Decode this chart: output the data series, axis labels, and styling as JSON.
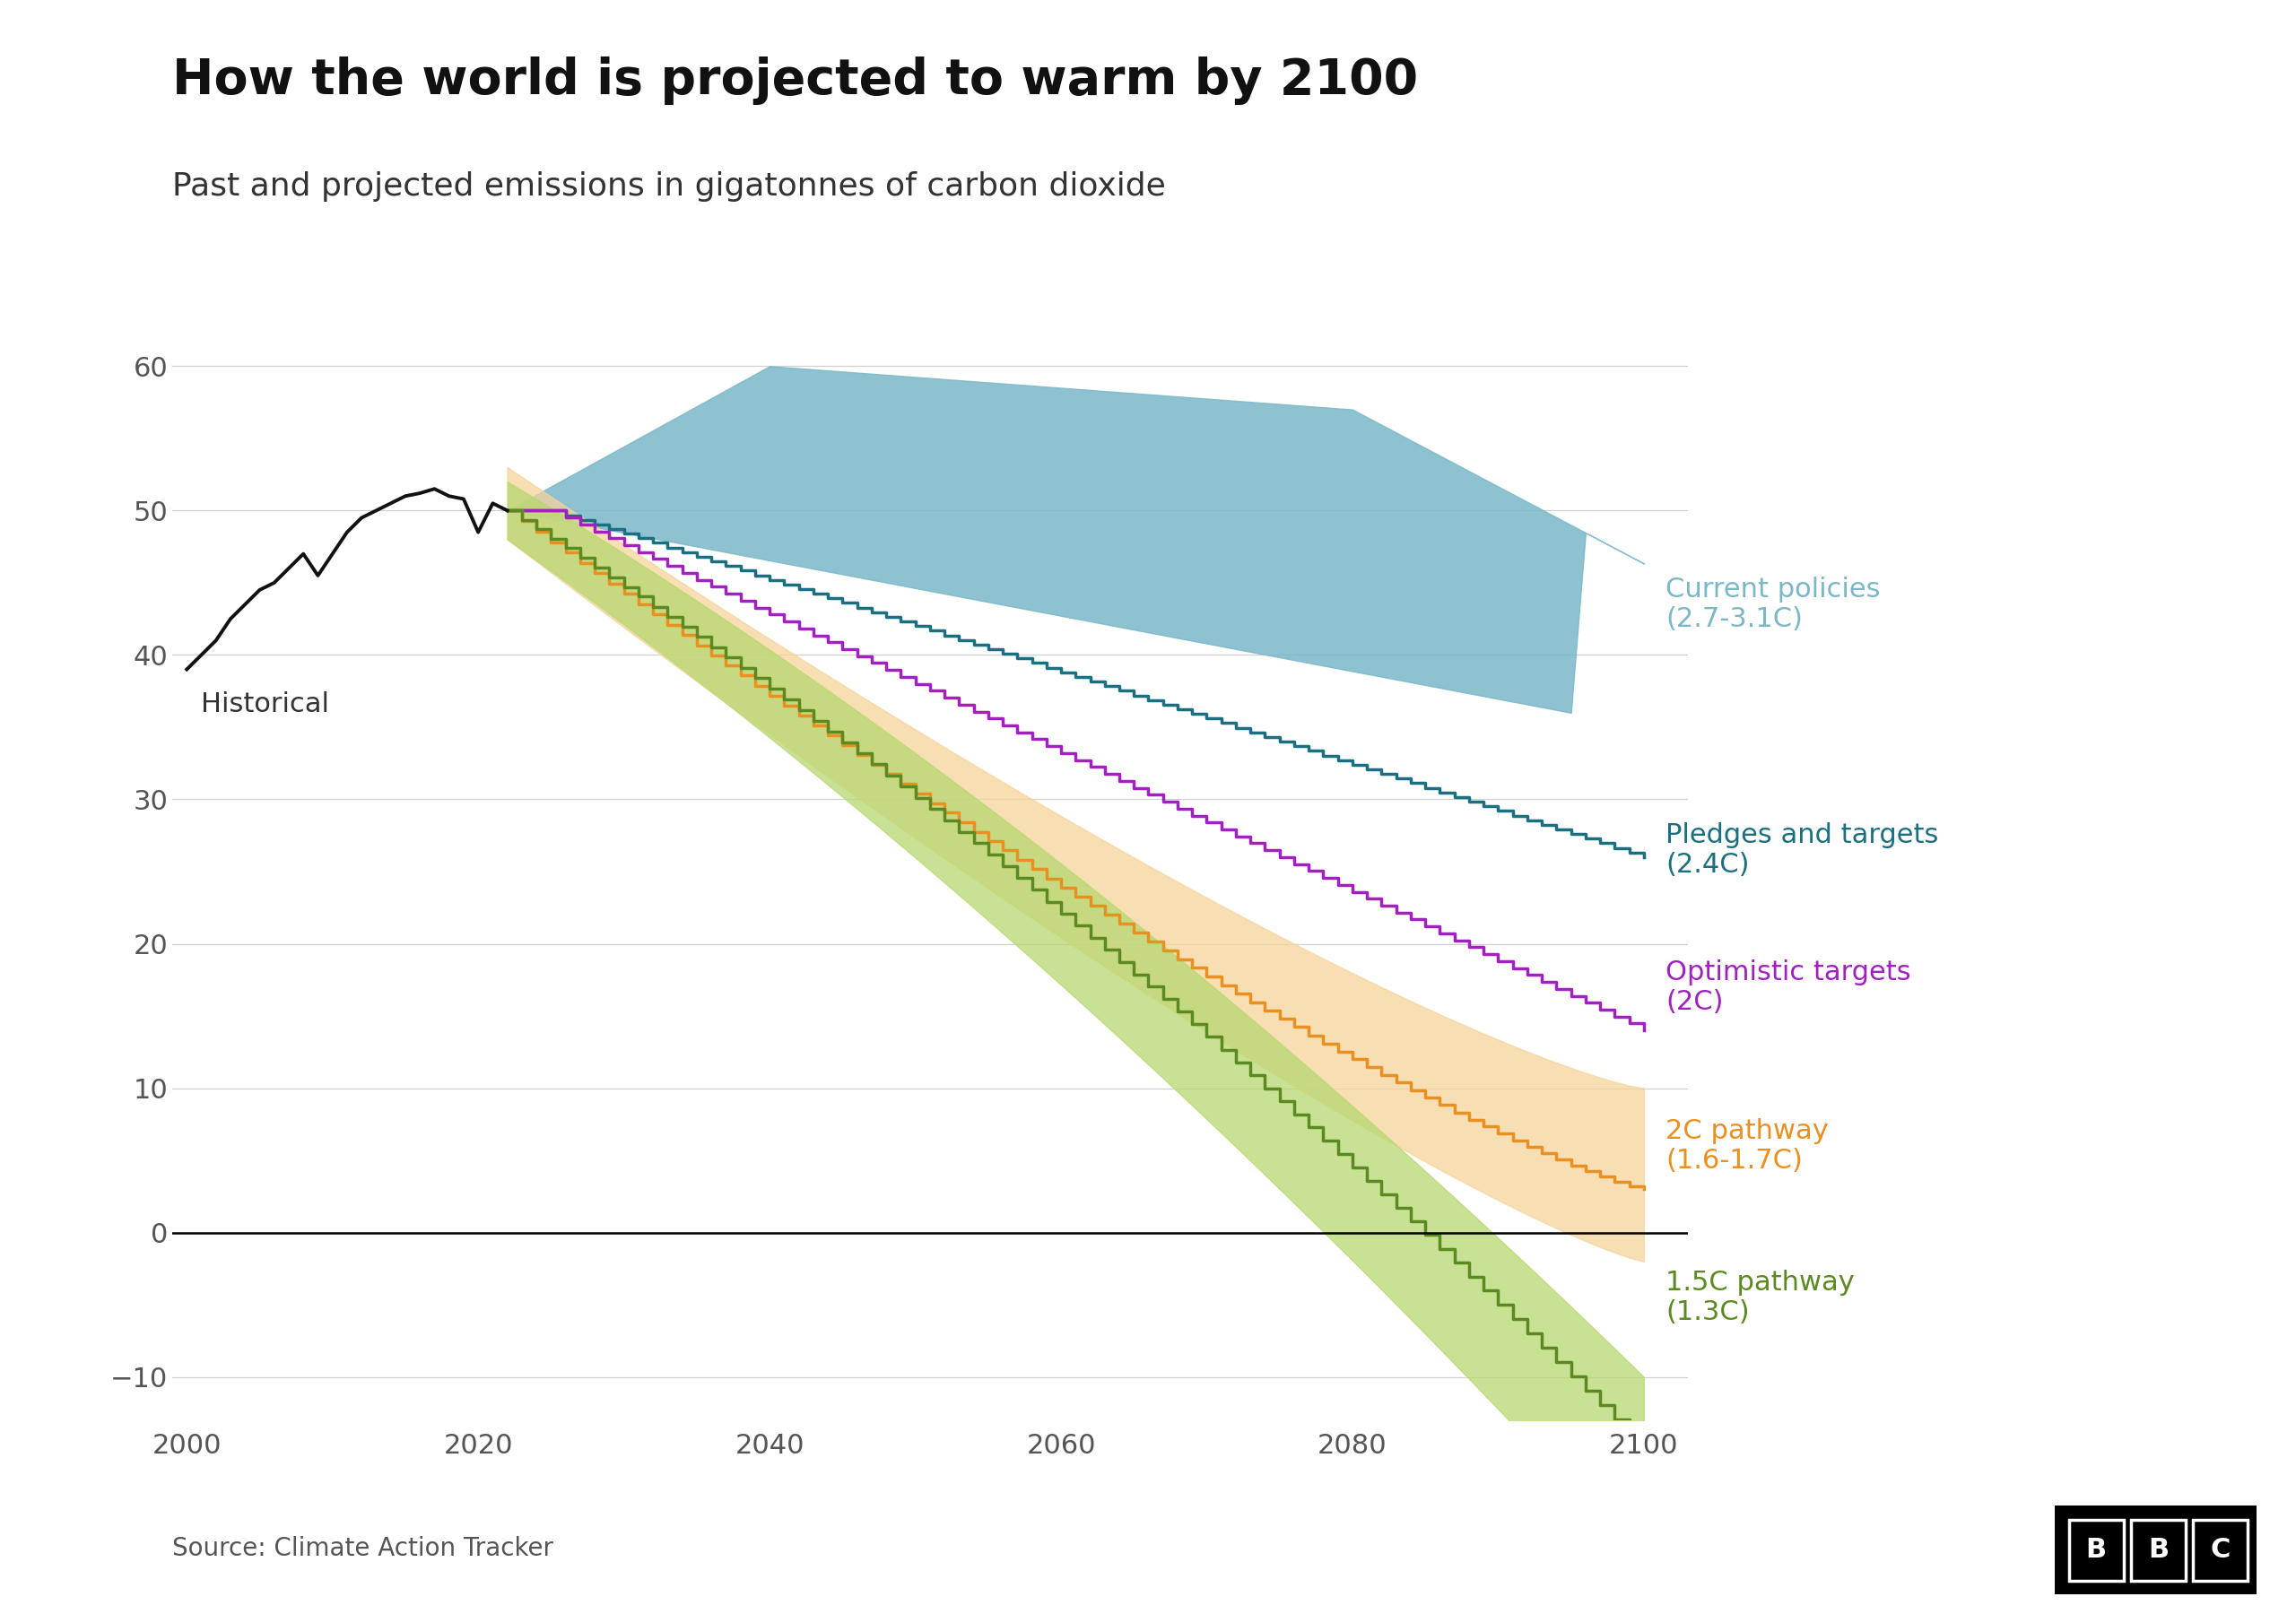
{
  "title": "How the world is projected to warm by 2100",
  "subtitle": "Past and projected emissions in gigatonnes of carbon dioxide",
  "source": "Source: Climate Action Tracker",
  "background_color": "#ffffff",
  "title_fontsize": 40,
  "subtitle_fontsize": 26,
  "source_fontsize": 20,
  "ylim": [
    -13,
    63
  ],
  "xlim": [
    1999,
    2103
  ],
  "yticks": [
    -10,
    0,
    10,
    20,
    30,
    40,
    50,
    60
  ],
  "xticks": [
    2000,
    2020,
    2040,
    2060,
    2080,
    2100
  ],
  "historical_color": "#111111",
  "current_policies_fill": "#7ab8c8",
  "pledges_color": "#1a7080",
  "optimistic_color": "#a020c0",
  "pathway_2c_color": "#e89020",
  "pathway_2c_fill": "#f5d49a",
  "pathway_15c_color": "#5a8a20",
  "pathway_15c_fill": "#b8d870",
  "label_current_policies": "Current policies\n(2.7-3.1C)",
  "label_pledges": "Pledges and targets\n(2.4C)",
  "label_optimistic": "Optimistic targets\n(2C)",
  "label_2c": "2C pathway\n(1.6-1.7C)",
  "label_15c": "1.5C pathway\n(1.3C)",
  "label_historical": "Historical"
}
